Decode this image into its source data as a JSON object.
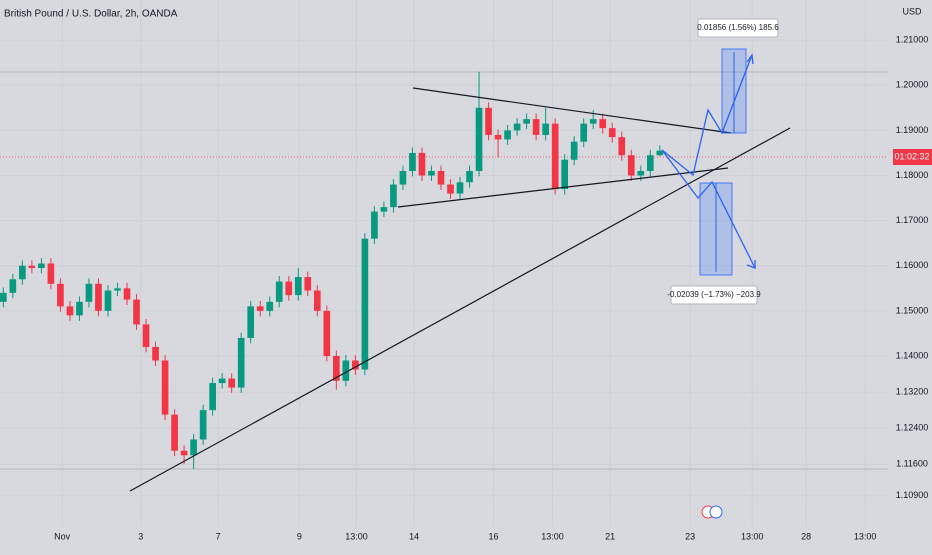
{
  "chart_data": {
    "type": "candlestick",
    "title": "British Pound / U.S. Dollar, 2h, OANDA",
    "y_axis_label": "USD",
    "countdown": "01:02:32",
    "annotations": [
      "0.01856 (1.56%) 185.6",
      "-0.02039 (−1.73%) −203.9"
    ],
    "up_color": "#089981",
    "down_color": "#f23645",
    "grid": true,
    "x": [
      0,
      1.5,
      3,
      4.5,
      6,
      7.5,
      9,
      10.5,
      12,
      13.5,
      15,
      16.5,
      18,
      19.5,
      21,
      22.5,
      24,
      25.5,
      27,
      28.5,
      30,
      31.5,
      33,
      34.5,
      36,
      37.5,
      39,
      40.5,
      42,
      43.5,
      45,
      46.5,
      48,
      49.5,
      51,
      52.5,
      54,
      55.5,
      57,
      58.5,
      60,
      61.5,
      63,
      64.5,
      66,
      67.5,
      69,
      70.5,
      72,
      73.5,
      75,
      76.5,
      78,
      79.5,
      81,
      82.5,
      84,
      85.5,
      87,
      88.5,
      90,
      91.5,
      93,
      94.5,
      96,
      97.5,
      99,
      100.5,
      102,
      103.5
    ],
    "open": [
      1.152,
      1.154,
      1.157,
      1.16,
      1.1595,
      1.1605,
      1.156,
      1.151,
      1.149,
      1.152,
      1.156,
      1.15,
      1.1545,
      1.155,
      1.1525,
      1.147,
      1.142,
      1.139,
      1.127,
      1.119,
      1.118,
      1.1215,
      1.128,
      1.134,
      1.135,
      1.133,
      1.144,
      1.151,
      1.15,
      1.152,
      1.1565,
      1.1535,
      1.1575,
      1.1545,
      1.15,
      1.14,
      1.1345,
      1.139,
      1.137,
      1.166,
      1.172,
      1.173,
      1.178,
      1.181,
      1.185,
      1.18,
      1.181,
      1.178,
      1.176,
      1.1785,
      1.181,
      1.195,
      1.189,
      1.188,
      1.19,
      1.1915,
      1.1925,
      1.189,
      1.1915,
      1.177,
      1.1835,
      1.1875,
      1.1915,
      1.1925,
      1.1905,
      1.1885,
      1.1845,
      1.18,
      1.181,
      1.1845
    ],
    "high": [
      1.1552,
      1.1582,
      1.1612,
      1.1612,
      1.1617,
      1.1617,
      1.1572,
      1.1522,
      1.1532,
      1.1572,
      1.1572,
      1.1557,
      1.1562,
      1.1562,
      1.1537,
      1.1482,
      1.1432,
      1.1402,
      1.1282,
      1.1202,
      1.1227,
      1.1292,
      1.1352,
      1.1362,
      1.1362,
      1.1452,
      1.1522,
      1.1522,
      1.1532,
      1.1577,
      1.1577,
      1.1595,
      1.1587,
      1.1557,
      1.1512,
      1.1412,
      1.1402,
      1.1402,
      1.1672,
      1.1732,
      1.1742,
      1.1792,
      1.1822,
      1.1862,
      1.1862,
      1.1822,
      1.1822,
      1.1792,
      1.1797,
      1.1822,
      1.203,
      1.1962,
      1.1902,
      1.1912,
      1.1927,
      1.1937,
      1.1937,
      1.195,
      1.1927,
      1.1847,
      1.1887,
      1.1927,
      1.1945,
      1.1937,
      1.1917,
      1.1897,
      1.1857,
      1.1822,
      1.1857,
      1.1867
    ],
    "low": [
      1.1508,
      1.1528,
      1.1558,
      1.1583,
      1.1583,
      1.1548,
      1.1498,
      1.1478,
      1.1478,
      1.1508,
      1.1488,
      1.1488,
      1.1533,
      1.1513,
      1.1458,
      1.1408,
      1.1378,
      1.1258,
      1.1178,
      1.116,
      1.115,
      1.1203,
      1.1268,
      1.1328,
      1.1318,
      1.1318,
      1.1428,
      1.1488,
      1.1488,
      1.1508,
      1.1523,
      1.1523,
      1.1533,
      1.1488,
      1.1388,
      1.1325,
      1.1333,
      1.1358,
      1.1358,
      1.1648,
      1.1708,
      1.1718,
      1.1768,
      1.1798,
      1.1788,
      1.1788,
      1.1768,
      1.1748,
      1.1748,
      1.1773,
      1.1798,
      1.1878,
      1.184,
      1.1868,
      1.1888,
      1.1903,
      1.1878,
      1.1878,
      1.1758,
      1.1758,
      1.1823,
      1.1863,
      1.1903,
      1.1893,
      1.1873,
      1.1833,
      1.1788,
      1.1788,
      1.1798,
      1.1843
    ],
    "close": [
      1.154,
      1.157,
      1.16,
      1.1595,
      1.1605,
      1.156,
      1.151,
      1.149,
      1.152,
      1.156,
      1.15,
      1.1545,
      1.155,
      1.1525,
      1.147,
      1.142,
      1.139,
      1.127,
      1.119,
      1.118,
      1.1215,
      1.128,
      1.134,
      1.135,
      1.133,
      1.144,
      1.151,
      1.15,
      1.152,
      1.1565,
      1.1535,
      1.1575,
      1.1545,
      1.15,
      1.14,
      1.1345,
      1.139,
      1.137,
      1.166,
      1.172,
      1.173,
      1.178,
      1.181,
      1.185,
      1.18,
      1.181,
      1.178,
      1.176,
      1.1785,
      1.181,
      1.195,
      1.189,
      1.188,
      1.19,
      1.1915,
      1.1925,
      1.189,
      1.1915,
      1.177,
      1.1835,
      1.1875,
      1.1915,
      1.1925,
      1.1905,
      1.1885,
      1.1845,
      1.18,
      1.181,
      1.1845,
      1.1855
    ],
    "xlim": [
      0,
      140
    ],
    "xticks": [
      {
        "value": 9.8,
        "label": "Nov"
      },
      {
        "value": 22.2,
        "label": "3"
      },
      {
        "value": 34.4,
        "label": "7"
      },
      {
        "value": 47.2,
        "label": "9"
      },
      {
        "value": 56.2,
        "label": "13:00"
      },
      {
        "value": 65.3,
        "label": "14"
      },
      {
        "value": 77.8,
        "label": "16"
      },
      {
        "value": 87.1,
        "label": "13:00"
      },
      {
        "value": 96.2,
        "label": "21"
      },
      {
        "value": 108.8,
        "label": "23"
      },
      {
        "value": 118.6,
        "label": "13:00"
      },
      {
        "value": 127.1,
        "label": "28"
      },
      {
        "value": 136.4,
        "label": "13:00"
      }
    ],
    "ylim": [
      1.1021,
      1.2189
    ],
    "yticks": [
      {
        "value": 1.21,
        "label": "1.21000"
      },
      {
        "value": 1.2,
        "label": "1.20000"
      },
      {
        "value": 1.19,
        "label": "1.19000"
      },
      {
        "value": 1.18,
        "label": "1.18000"
      },
      {
        "value": 1.17,
        "label": "1.17000"
      },
      {
        "value": 1.16,
        "label": "1.16000"
      },
      {
        "value": 1.15,
        "label": "1.15000"
      },
      {
        "value": 1.14,
        "label": "1.14000"
      },
      {
        "value": 1.132,
        "label": "1.13200"
      },
      {
        "value": 1.124,
        "label": "1.12400"
      },
      {
        "value": 1.116,
        "label": "1.11600"
      },
      {
        "value": 1.109,
        "label": "1.10900"
      }
    ]
  }
}
